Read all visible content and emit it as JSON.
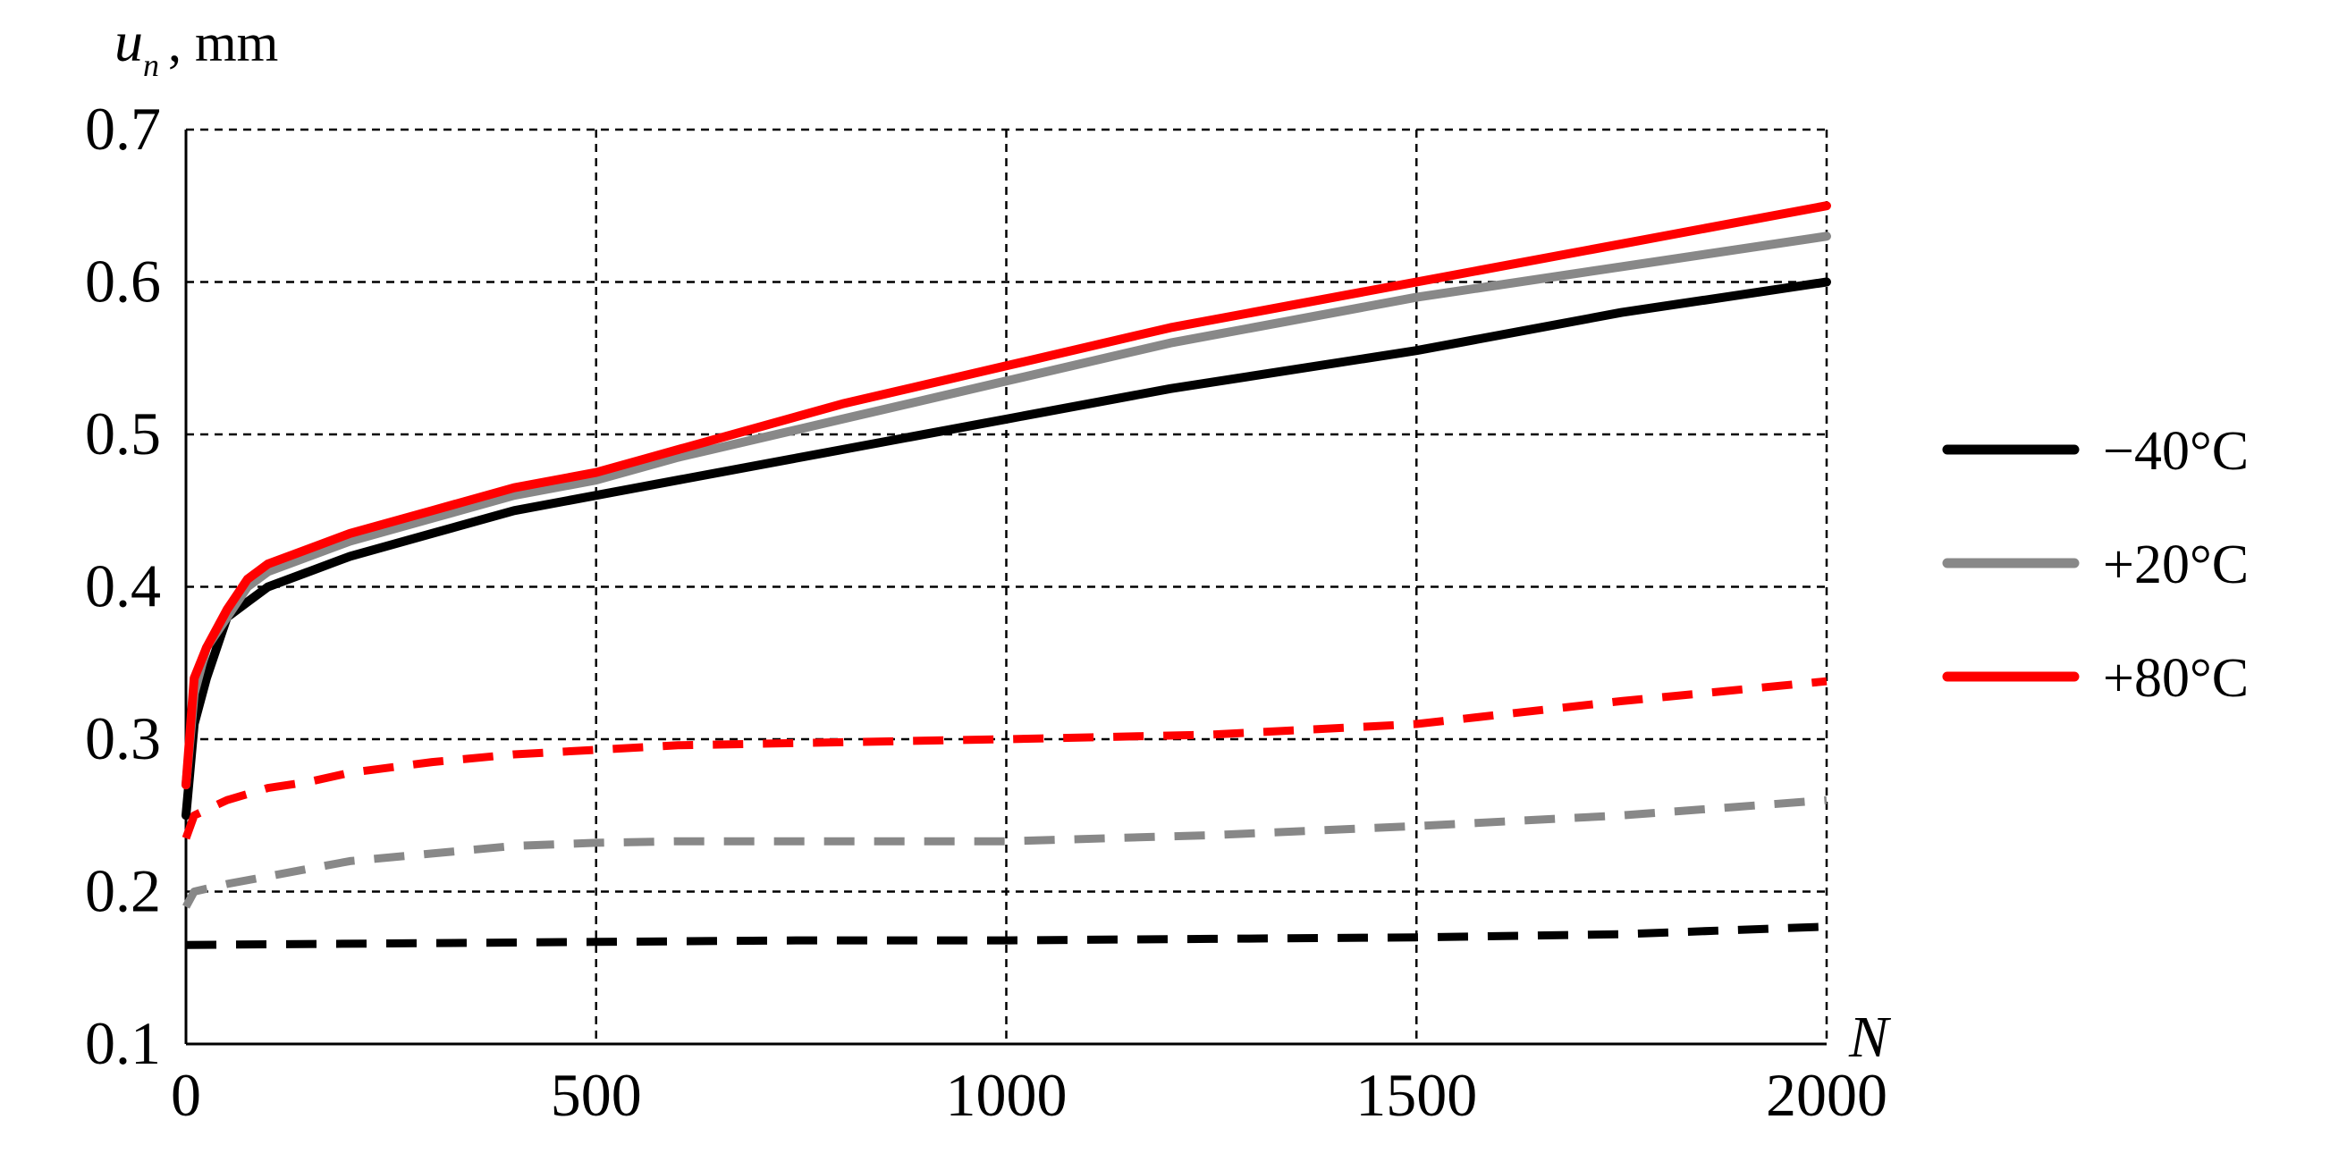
{
  "chart_data": {
    "type": "line",
    "title": "",
    "xlabel": "N",
    "ylabel_symbol": "u",
    "ylabel_subscript": "n",
    "ylabel_unit": ", mm",
    "xlim": [
      0,
      2000
    ],
    "ylim": [
      0.1,
      0.7
    ],
    "x_ticks": [
      0,
      500,
      1000,
      1500,
      2000
    ],
    "x_tick_labels": [
      "0",
      "500",
      "1000",
      "1500",
      "2000"
    ],
    "y_ticks": [
      0.1,
      0.2,
      0.3,
      0.4,
      0.5,
      0.6,
      0.7
    ],
    "y_tick_labels": [
      "0.1",
      "0.2",
      "0.3",
      "0.4",
      "0.5",
      "0.6",
      "0.7"
    ],
    "grid": true,
    "legend_position": "right",
    "series": [
      {
        "name": "−40°C",
        "color": "#000000",
        "style": "solid",
        "x": [
          0,
          10,
          25,
          50,
          75,
          100,
          150,
          200,
          300,
          400,
          500,
          600,
          800,
          1000,
          1200,
          1500,
          1750,
          2000
        ],
        "y": [
          0.25,
          0.31,
          0.34,
          0.38,
          0.39,
          0.4,
          0.41,
          0.42,
          0.435,
          0.45,
          0.46,
          0.47,
          0.49,
          0.51,
          0.53,
          0.555,
          0.58,
          0.6
        ]
      },
      {
        "name": "+20°C",
        "color": "#888888",
        "style": "solid",
        "x": [
          0,
          10,
          25,
          50,
          75,
          100,
          150,
          200,
          300,
          400,
          500,
          600,
          800,
          1000,
          1200,
          1500,
          1750,
          2000
        ],
        "y": [
          0.27,
          0.33,
          0.36,
          0.38,
          0.4,
          0.41,
          0.42,
          0.43,
          0.445,
          0.46,
          0.47,
          0.485,
          0.51,
          0.535,
          0.56,
          0.59,
          0.61,
          0.63
        ]
      },
      {
        "name": "+80°C",
        "color": "#ff0000",
        "style": "solid",
        "x": [
          0,
          10,
          25,
          50,
          75,
          100,
          150,
          200,
          300,
          400,
          500,
          600,
          800,
          1000,
          1200,
          1500,
          1750,
          2000
        ],
        "y": [
          0.27,
          0.34,
          0.36,
          0.385,
          0.405,
          0.415,
          0.425,
          0.435,
          0.45,
          0.465,
          0.475,
          0.49,
          0.52,
          0.545,
          0.57,
          0.6,
          0.625,
          0.65
        ]
      },
      {
        "color": "#000000",
        "style": "dashed",
        "x": [
          0,
          250,
          500,
          750,
          1000,
          1250,
          1500,
          1750,
          2000
        ],
        "y": [
          0.165,
          0.166,
          0.167,
          0.168,
          0.168,
          0.169,
          0.17,
          0.172,
          0.177
        ]
      },
      {
        "color": "#888888",
        "style": "dashed",
        "x": [
          0,
          10,
          50,
          100,
          150,
          200,
          300,
          400,
          500,
          600,
          800,
          1000,
          1250,
          1500,
          1750,
          2000
        ],
        "y": [
          0.19,
          0.2,
          0.205,
          0.21,
          0.215,
          0.22,
          0.225,
          0.23,
          0.232,
          0.233,
          0.233,
          0.233,
          0.237,
          0.243,
          0.25,
          0.26
        ]
      },
      {
        "color": "#ff0000",
        "style": "dashed",
        "x": [
          0,
          10,
          50,
          100,
          150,
          200,
          300,
          400,
          500,
          600,
          800,
          1000,
          1250,
          1500,
          1750,
          2000
        ],
        "y": [
          0.235,
          0.25,
          0.26,
          0.268,
          0.272,
          0.278,
          0.285,
          0.29,
          0.293,
          0.296,
          0.298,
          0.3,
          0.303,
          0.31,
          0.325,
          0.338
        ]
      }
    ]
  }
}
